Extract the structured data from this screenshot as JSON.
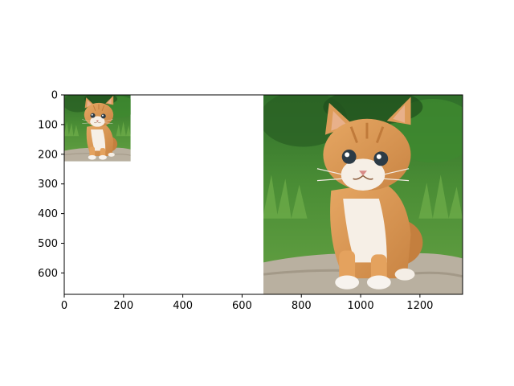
{
  "chart_data": {
    "type": "image",
    "title": "",
    "xlabel": "",
    "ylabel": "",
    "xlim": [
      0,
      1344
    ],
    "ylim": [
      672,
      0
    ],
    "x_ticks": [
      0,
      200,
      400,
      600,
      800,
      1000,
      1200
    ],
    "y_ticks": [
      0,
      100,
      200,
      300,
      400,
      500,
      600
    ],
    "grid": false,
    "images": [
      {
        "name": "kitten-small",
        "x_extent": [
          0,
          224
        ],
        "y_extent": [
          0,
          224
        ],
        "subject": "kitten"
      },
      {
        "name": "kitten-large",
        "x_extent": [
          672,
          1344
        ],
        "y_extent": [
          0,
          672
        ],
        "subject": "kitten"
      }
    ]
  }
}
